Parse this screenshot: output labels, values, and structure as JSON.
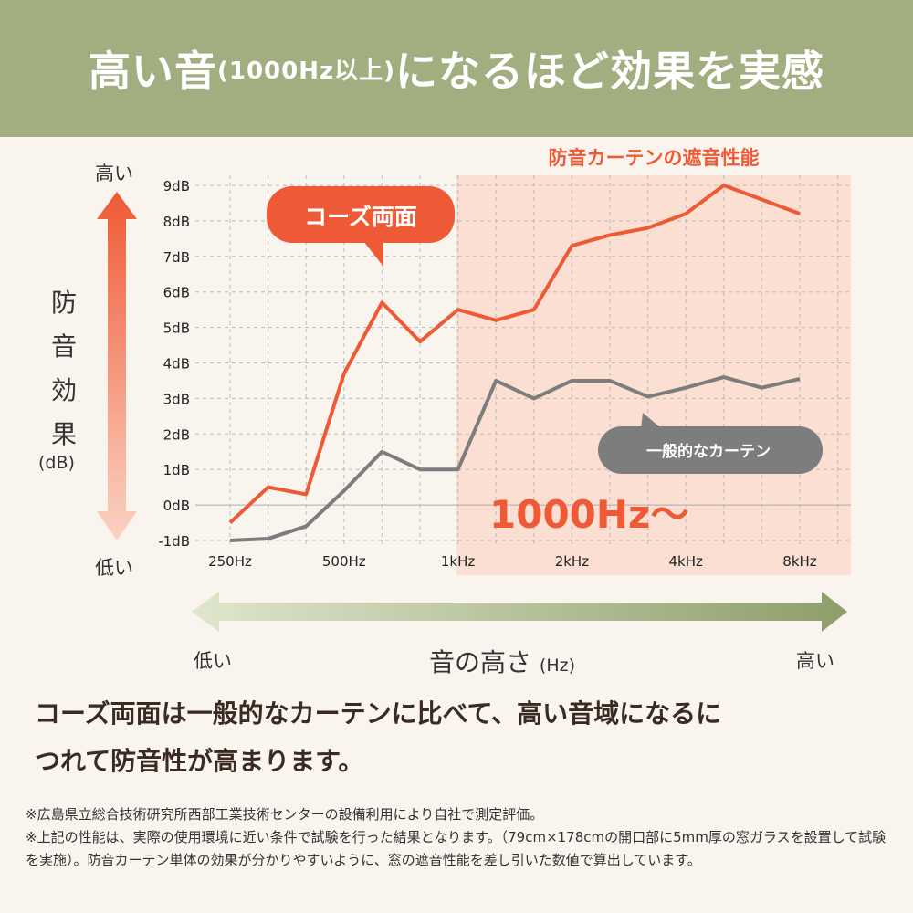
{
  "header": {
    "title_a": "高い音",
    "title_b": "(1000Hz以上)",
    "title_c": "になるほど効果を実感"
  },
  "y_axis": {
    "top": "高い",
    "bottom": "低い",
    "label_chars": [
      "防",
      "音",
      "効",
      "果"
    ],
    "unit": "(dB)"
  },
  "x_axis": {
    "left": "低い",
    "right": "高い",
    "label": "音の高さ",
    "unit": "(Hz)"
  },
  "colors": {
    "header": "#a3ae80",
    "orange": "#ee5a35",
    "gray": "#7d7d7d",
    "highlight": "#fbdfd3"
  },
  "chart_data": {
    "type": "line",
    "region_title": "防音カーテンの遮音性能",
    "region_label": "1000Hz〜",
    "region_start": "1kHz",
    "x": [
      "250Hz",
      "315Hz",
      "400Hz",
      "500Hz",
      "630Hz",
      "800Hz",
      "1kHz",
      "1.25kHz",
      "1.6kHz",
      "2kHz",
      "2.5kHz",
      "3.15kHz",
      "4kHz",
      "5kHz",
      "6.3kHz",
      "8kHz"
    ],
    "xtick_labels": [
      "250Hz",
      "500Hz",
      "1kHz",
      "2kHz",
      "4kHz",
      "8kHz"
    ],
    "ytick_labels": [
      "9dB",
      "8dB",
      "7dB",
      "6dB",
      "5dB",
      "4dB",
      "3dB",
      "2dB",
      "1dB",
      "0dB",
      "-1dB"
    ],
    "ylim": [
      -1,
      9
    ],
    "grid": true,
    "series": [
      {
        "name": "コーズ両面",
        "color": "#ee5a35",
        "values": [
          -0.5,
          0.5,
          0.3,
          3.7,
          5.7,
          4.6,
          5.5,
          5.2,
          5.5,
          7.3,
          7.6,
          7.8,
          8.2,
          9.0,
          8.6,
          8.2
        ]
      },
      {
        "name": "一般的なカーテン",
        "color": "#7d7d7d",
        "values": [
          -1.0,
          -0.95,
          -0.6,
          0.4,
          1.5,
          1.0,
          1.0,
          3.5,
          3.0,
          3.5,
          3.5,
          3.05,
          3.3,
          3.6,
          3.3,
          3.55
        ]
      }
    ]
  },
  "summary": [
    "コーズ両面は一般的なカーテンに比べて、高い音域になるに",
    "つれて防音性が高まります。"
  ],
  "notes": [
    "※広島県立総合技術研究所西部工業技術センターの設備利用により自社で測定評価。",
    "※上記の性能は、実際の使用環境に近い条件で試験を行った結果となります。（79cm×178cmの開口部に5mm厚の窓ガラスを設置して試験を実施）。防音カーテン単体の効果が分かりやすいように、窓の遮音性能を差し引いた数値で算出しています。"
  ]
}
